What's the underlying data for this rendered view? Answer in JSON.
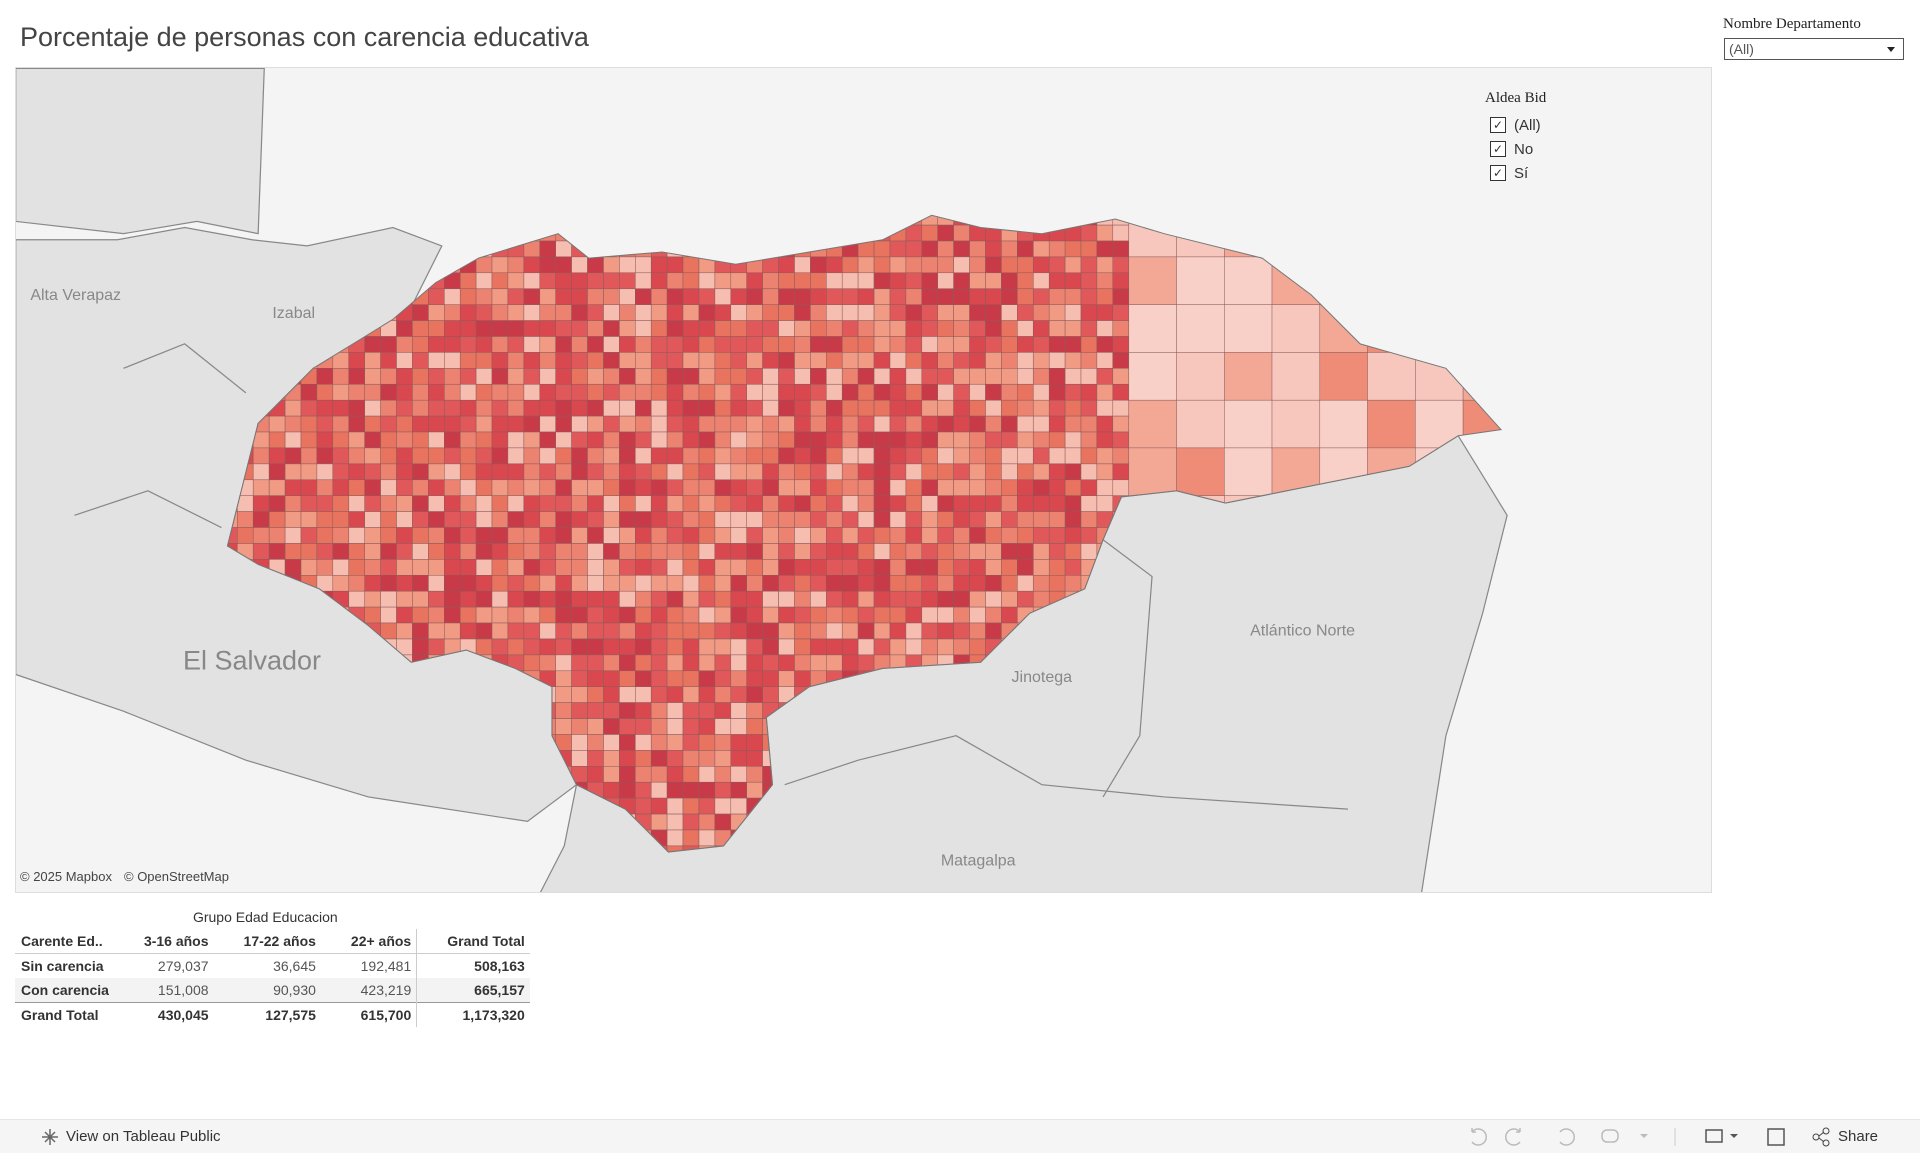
{
  "header": {
    "title": "Porcentaje de personas con carencia educativa"
  },
  "filter": {
    "label": "Nombre Departamento",
    "value": "(All)"
  },
  "legend": {
    "title": "Aldea Bid",
    "items": [
      "(All)",
      "No",
      "Sí"
    ]
  },
  "map": {
    "labels": [
      "Alta Verapaz",
      "Izabal",
      "El Salvador",
      "Jinotega",
      "Atlántico Norte",
      "Matagalpa"
    ],
    "attribution": [
      "© 2025 Mapbox",
      "© OpenStreetMap"
    ]
  },
  "table": {
    "group_header": "Grupo Edad Educacion",
    "columns": [
      "Carente Ed..",
      "3-16 años",
      "17-22 años",
      "22+ años",
      "Grand Total"
    ],
    "rows": [
      [
        "Sin carencia",
        "279,037",
        "36,645",
        "192,481",
        "508,163"
      ],
      [
        "Con carencia",
        "151,008",
        "90,930",
        "423,219",
        "665,157"
      ],
      [
        "Grand Total",
        "430,045",
        "127,575",
        "615,700",
        "1,173,320"
      ]
    ]
  },
  "footer": {
    "link": "View on Tableau Public",
    "share": "Share"
  }
}
